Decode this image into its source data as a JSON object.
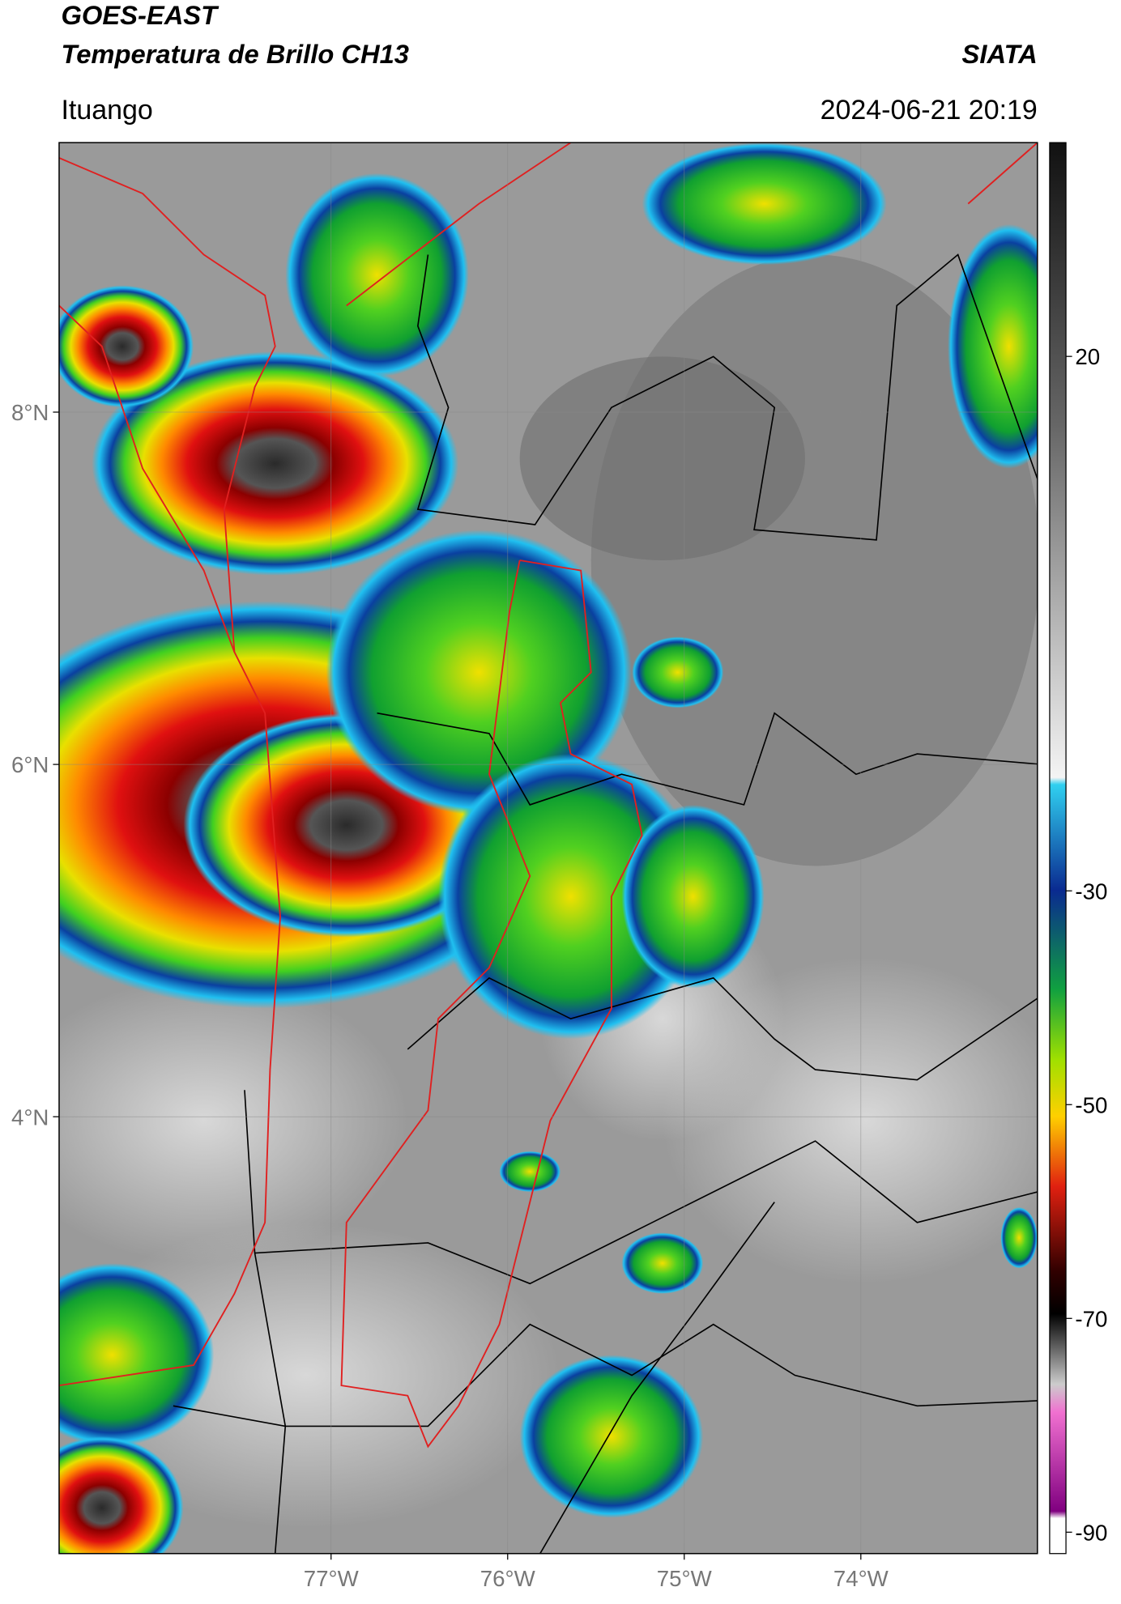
{
  "header": {
    "title": "GOES-EAST",
    "subtitle": "Temperatura de Brillo CH13",
    "source": "SIATA",
    "location": "Ituango",
    "datetime": "2024-06-21 20:19"
  },
  "map": {
    "lat_range": [
      1.52,
      9.53
    ],
    "lon_range": [
      -78.54,
      -73.0
    ],
    "lat_ticks": [
      {
        "value": 8,
        "label": "8°N"
      },
      {
        "value": 6,
        "label": "6°N"
      },
      {
        "value": 4,
        "label": "4°N"
      }
    ],
    "lon_ticks": [
      {
        "value": -77,
        "label": "77°W"
      },
      {
        "value": -76,
        "label": "76°W"
      },
      {
        "value": -75,
        "label": "75°W"
      },
      {
        "value": -74,
        "label": "74°W"
      }
    ]
  },
  "colorbar": {
    "range": [
      -92,
      40
    ],
    "ticks": [
      20,
      -30,
      -50,
      -70,
      -90
    ]
  }
}
